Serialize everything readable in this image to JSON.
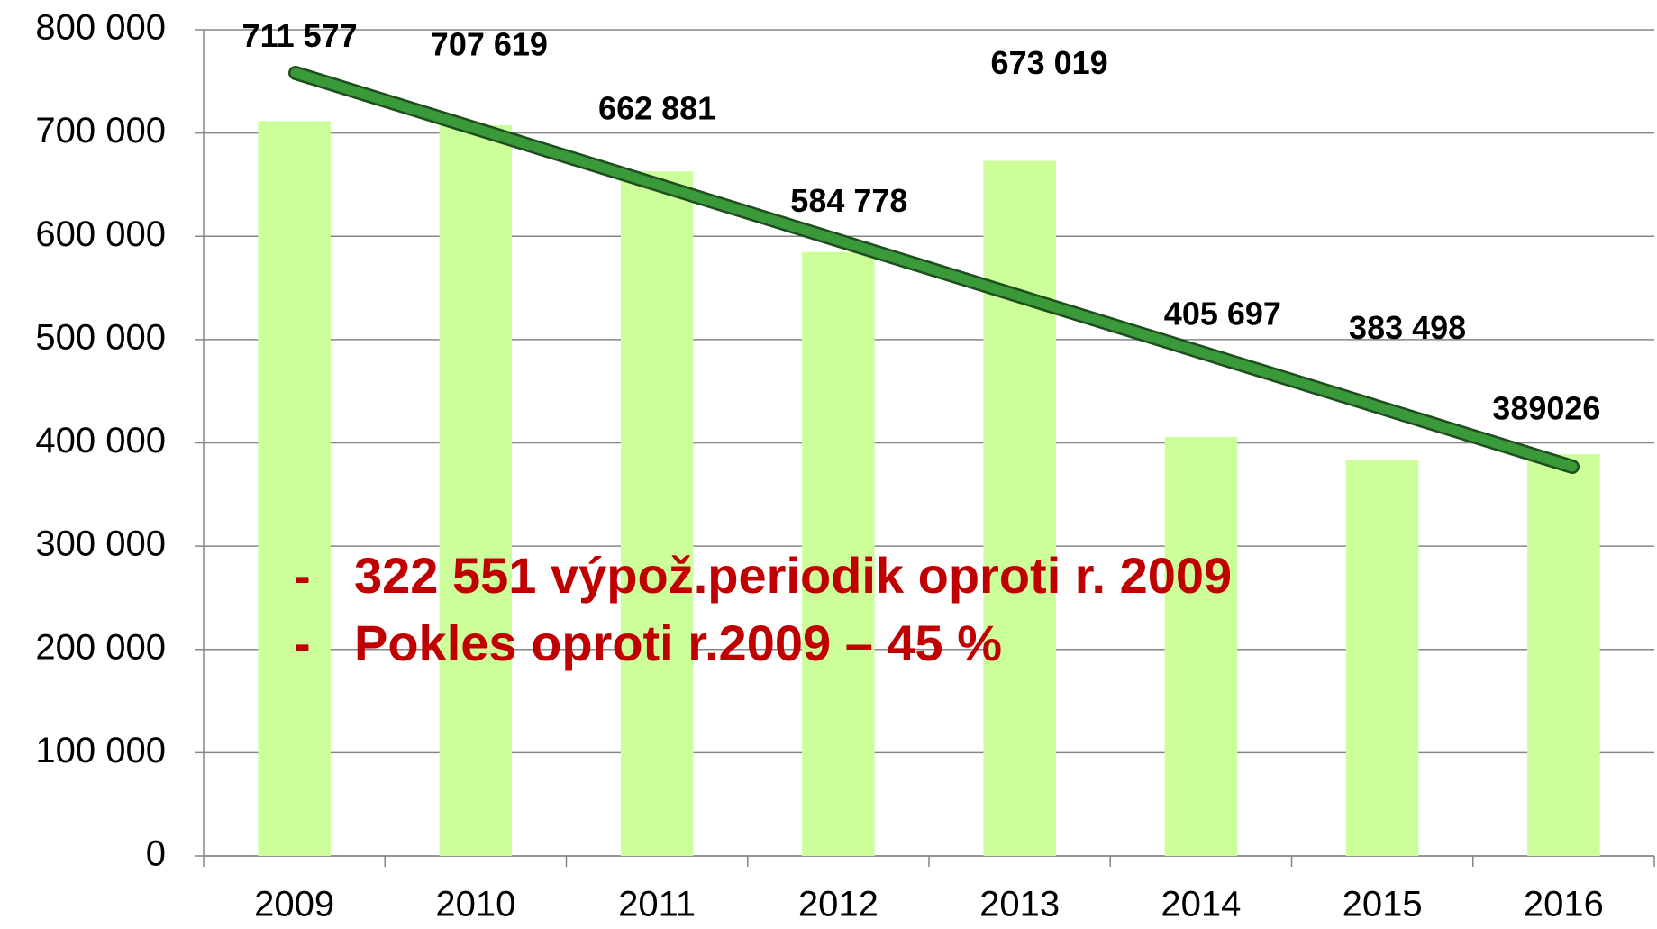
{
  "chart_data": {
    "type": "bar",
    "categories": [
      "2009",
      "2010",
      "2011",
      "2012",
      "2013",
      "2014",
      "2015",
      "2016"
    ],
    "values": [
      711577,
      707619,
      662881,
      584778,
      673019,
      405697,
      383498,
      389026
    ],
    "value_labels": [
      "711 577",
      "707 619",
      "662 881",
      "584 778",
      "673 019",
      "405 697",
      "383 498",
      "389026"
    ],
    "color": "#ccff99",
    "ylim": [
      0,
      800000
    ],
    "yticks": [
      0,
      {
        "value": 100000,
        "label": "100 000"
      },
      {
        "value": 200000,
        "label": "200 000"
      },
      {
        "value": 300000,
        "label": "300 000"
      },
      {
        "value": 400000,
        "label": "400 000"
      },
      {
        "value": 500000,
        "label": "500 000"
      },
      {
        "value": 600000,
        "label": "600 000"
      },
      {
        "value": 700000,
        "label": "700 000"
      },
      {
        "value": 800000,
        "label": "800 000"
      }
    ],
    "grid": true,
    "annotations": [
      {
        "bullet": "-",
        "text": "322 551 výpož.periodik oproti r. 2009"
      },
      {
        "bullet": "-",
        "text": "Pokles oproti r.2009  – 45 %"
      }
    ]
  }
}
